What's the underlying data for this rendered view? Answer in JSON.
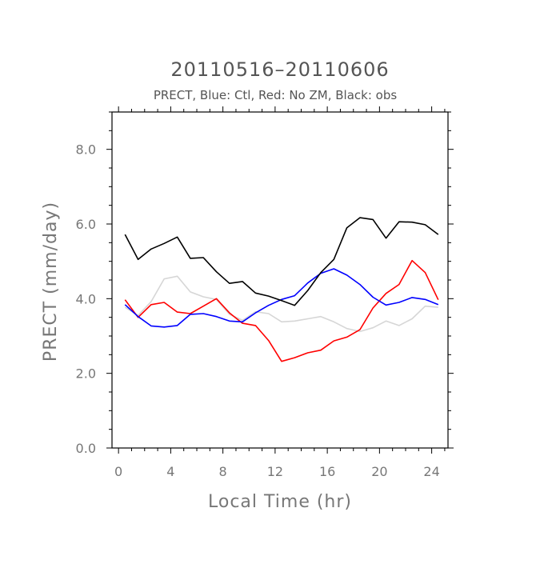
{
  "chart_data": {
    "type": "line",
    "title": "20110516–20110606",
    "subtitle": "PRECT, Blue: Ctl, Red: No ZM, Black: obs",
    "xlabel": "Local Time (hr)",
    "ylabel": "PRECT (mm/day)",
    "xlim": [
      -0.5,
      25.25
    ],
    "ylim": [
      0,
      9
    ],
    "x_ticks": [
      "0",
      "4",
      "8",
      "12",
      "16",
      "20",
      "24"
    ],
    "y_ticks": [
      "0.0",
      "2.0",
      "4.0",
      "6.0",
      "8.0"
    ],
    "x": [
      0.5,
      1.5,
      2.5,
      3.5,
      4.5,
      5.5,
      6.5,
      7.5,
      8.5,
      9.5,
      10.5,
      11.5,
      12.5,
      13.5,
      14.5,
      15.5,
      16.5,
      17.5,
      18.5,
      19.5,
      20.5,
      21.5,
      22.5,
      23.5,
      24.5
    ],
    "series": [
      {
        "color": "#000000",
        "values": [
          5.72,
          5.05,
          5.33,
          5.48,
          5.65,
          5.08,
          5.1,
          4.72,
          4.41,
          4.46,
          4.15,
          4.07,
          3.95,
          3.82,
          4.22,
          4.7,
          5.05,
          5.9,
          6.17,
          6.12,
          5.62,
          6.06,
          6.05,
          5.98,
          5.72
        ]
      },
      {
        "color": "#0000ff",
        "values": [
          3.84,
          3.52,
          3.27,
          3.24,
          3.28,
          3.58,
          3.6,
          3.52,
          3.4,
          3.38,
          3.62,
          3.82,
          3.98,
          4.08,
          4.42,
          4.68,
          4.8,
          4.63,
          4.38,
          4.04,
          3.83,
          3.9,
          4.03,
          3.98,
          3.84
        ]
      },
      {
        "color": "#ff0000",
        "values": [
          3.97,
          3.5,
          3.84,
          3.9,
          3.64,
          3.6,
          3.8,
          4.0,
          3.62,
          3.34,
          3.28,
          2.88,
          2.32,
          2.42,
          2.55,
          2.62,
          2.87,
          2.97,
          3.17,
          3.75,
          4.14,
          4.38,
          5.02,
          4.7,
          3.97
        ]
      },
      {
        "color": "#d6d6d6",
        "values": [
          3.77,
          3.55,
          3.92,
          4.53,
          4.6,
          4.18,
          4.05,
          3.98,
          3.58,
          3.42,
          3.65,
          3.6,
          3.38,
          3.4,
          3.46,
          3.52,
          3.38,
          3.2,
          3.12,
          3.22,
          3.4,
          3.28,
          3.46,
          3.8,
          3.77
        ]
      }
    ],
    "grid": false,
    "legend": "none",
    "colors": {
      "axis": "#000000",
      "text": "#777777",
      "title": "#555555"
    }
  }
}
